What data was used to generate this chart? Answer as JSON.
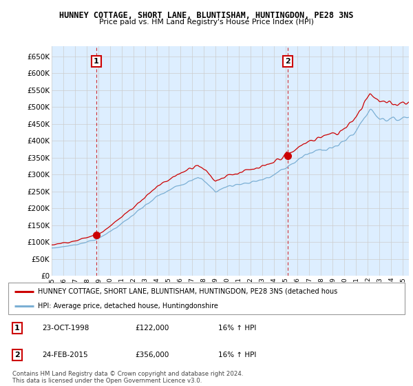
{
  "title": "HUNNEY COTTAGE, SHORT LANE, BLUNTISHAM, HUNTINGDON, PE28 3NS",
  "subtitle": "Price paid vs. HM Land Registry's House Price Index (HPI)",
  "ylim": [
    0,
    680000
  ],
  "yticks": [
    0,
    50000,
    100000,
    150000,
    200000,
    250000,
    300000,
    350000,
    400000,
    450000,
    500000,
    550000,
    600000,
    650000
  ],
  "xlim_start": 1995.0,
  "xlim_end": 2025.5,
  "purchase1_x": 1998.81,
  "purchase1_y": 122000,
  "purchase2_x": 2015.15,
  "purchase2_y": 356000,
  "red_line_color": "#cc0000",
  "blue_line_color": "#7bafd4",
  "dashed_red_color": "#cc0000",
  "grid_color": "#cccccc",
  "plot_bg_color": "#ddeeff",
  "legend_label_red": "HUNNEY COTTAGE, SHORT LANE, BLUNTISHAM, HUNTINGDON, PE28 3NS (detached hous",
  "legend_label_blue": "HPI: Average price, detached house, Huntingdonshire",
  "table_row1": [
    "1",
    "23-OCT-1998",
    "£122,000",
    "16% ↑ HPI"
  ],
  "table_row2": [
    "2",
    "24-FEB-2015",
    "£356,000",
    "16% ↑ HPI"
  ],
  "footer": "Contains HM Land Registry data © Crown copyright and database right 2024.\nThis data is licensed under the Open Government Licence v3.0."
}
